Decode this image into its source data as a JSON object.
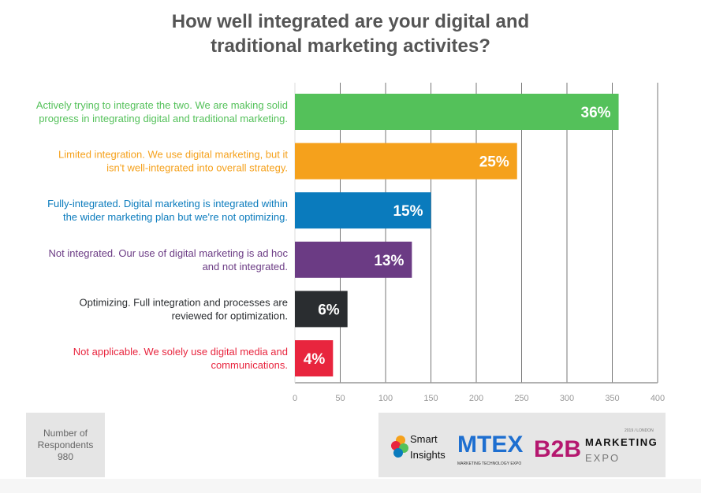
{
  "chart_data": {
    "type": "bar",
    "orientation": "horizontal",
    "title": "How well integrated are your digital and traditional marketing activites?",
    "categories": [
      "Actively trying to integrate the two. We are making solid progress in integrating digital and traditional marketing.",
      "Limited integration. We use digital marketing, but it isn't well-integrated into overall strategy.",
      "Fully-integrated. Digital marketing is integrated within the wider marketing plan but we're not optimizing.",
      "Not integrated. Our use of digital marketing is ad hoc and not integrated.",
      "Optimizing. Full integration and processes are reviewed for optimization.",
      "Not applicable. We solely use digital media and communications."
    ],
    "category_lines": [
      [
        "Actively trying to integrate the two. We are making solid",
        "progress in integrating digital and traditional marketing."
      ],
      [
        "Limited integration. We use digital marketing, but it",
        "isn't well-integrated into overall strategy."
      ],
      [
        "Fully-integrated. Digital marketing is integrated within",
        "the wider marketing plan but we're not optimizing."
      ],
      [
        "Not integrated. Our use of digital marketing is ad hoc",
        "and not integrated."
      ],
      [
        "Optimizing. Full integration and processes are",
        "reviewed for optimization."
      ],
      [
        "Not applicable. We solely use digital media and",
        "communications."
      ]
    ],
    "values": [
      357,
      245,
      150,
      129,
      58,
      42
    ],
    "data_labels": [
      "36%",
      "25%",
      "15%",
      "13%",
      "6%",
      "4%"
    ],
    "colors": [
      "#54c15a",
      "#f5a11c",
      "#0a7bbd",
      "#6b3b84",
      "#2a2d30",
      "#e8253e"
    ],
    "xlim": [
      0,
      400
    ],
    "xticks": [
      0,
      50,
      100,
      150,
      200,
      250,
      300,
      350,
      400
    ],
    "grid": true
  },
  "respondents": {
    "label_line1": "Number of",
    "label_line2": "Respondents",
    "value": "980"
  },
  "logos": [
    "Smart Insights",
    "MTEX Marketing Technology Expo",
    "B2B Marketing Expo 2019 / London"
  ]
}
